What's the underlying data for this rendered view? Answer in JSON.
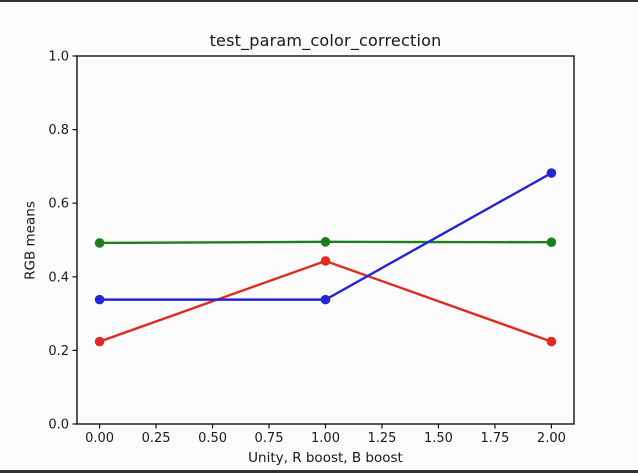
{
  "figure": {
    "background": "#fdfcfd",
    "artifact_bar_color": "#161616"
  },
  "chart_data": {
    "type": "line",
    "title": "test_param_color_correction",
    "xlabel": "Unity, R boost, B boost",
    "ylabel": "RGB means",
    "x": [
      0.0,
      1.0,
      2.0
    ],
    "series": [
      {
        "name": "red",
        "color": "#e02b22",
        "values": [
          0.224,
          0.443,
          0.224
        ]
      },
      {
        "name": "green",
        "color": "#1e7d1f",
        "values": [
          0.492,
          0.495,
          0.494
        ]
      },
      {
        "name": "blue",
        "color": "#2525d6",
        "values": [
          0.338,
          0.338,
          0.682
        ]
      }
    ],
    "xlim": [
      -0.1,
      2.1
    ],
    "ylim": [
      0.0,
      1.0
    ],
    "xticks": {
      "values": [
        0.0,
        0.25,
        0.5,
        0.75,
        1.0,
        1.25,
        1.5,
        1.75,
        2.0
      ],
      "labels": [
        "0.00",
        "0.25",
        "0.50",
        "0.75",
        "1.00",
        "1.25",
        "1.50",
        "1.75",
        "2.00"
      ]
    },
    "yticks": {
      "values": [
        0.0,
        0.2,
        0.4,
        0.6,
        0.8,
        1.0
      ],
      "labels": [
        "0.0",
        "0.2",
        "0.4",
        "0.6",
        "0.8",
        "1.0"
      ]
    },
    "grid": false,
    "legend": false,
    "marker": "circle",
    "axis_color": "#111111",
    "tick_label_color": "#1a1a1a"
  }
}
